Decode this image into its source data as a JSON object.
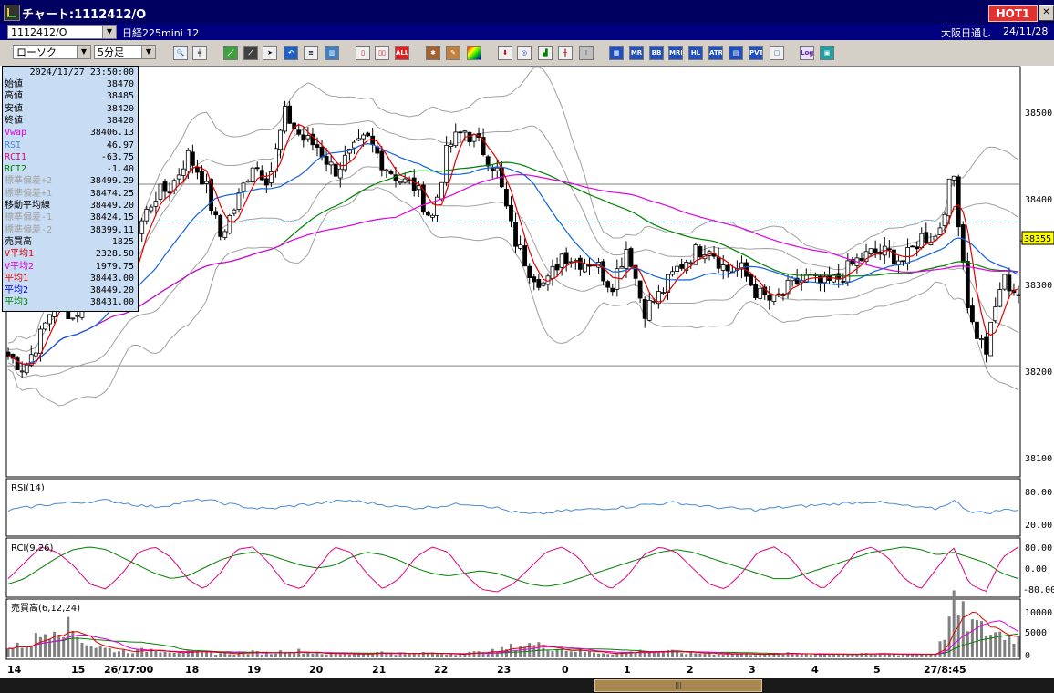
{
  "window": {
    "title": "チャート:1112412/O",
    "hot_label": "HOT1"
  },
  "infobar": {
    "symbol_code": "1112412/O",
    "symbol_name": "日経225mini 12",
    "market": "大阪日通し",
    "date": "24/11/28"
  },
  "toolbar": {
    "chart_type": "ローソク",
    "interval": "5分足",
    "labels": {
      "all": "ALL",
      "mr": "MR",
      "bb": "BB",
      "mre": "MRE",
      "hl": "HL",
      "atr": "ATR",
      "pvt": "PVT",
      "log": "Log"
    }
  },
  "info_panel": {
    "datetime": "2024/11/27  23:50:00",
    "rows": [
      {
        "label": "始値",
        "value": "38470",
        "color": "#000000"
      },
      {
        "label": "高値",
        "value": "38485",
        "color": "#000000"
      },
      {
        "label": "安値",
        "value": "38420",
        "color": "#000000"
      },
      {
        "label": "終値",
        "value": "38420",
        "color": "#000000"
      },
      {
        "label": "Vwap",
        "value": "38406.13",
        "color": "#e000e0"
      },
      {
        "label": "RSI",
        "value": "46.97",
        "color": "#4a8ad0"
      },
      {
        "label": "RCI1",
        "value": "-63.75",
        "color": "#e00080"
      },
      {
        "label": "RCI2",
        "value": "-1.40",
        "color": "#008000"
      },
      {
        "label": "標準偏差+2",
        "value": "38499.29",
        "color": "#a0a0a0"
      },
      {
        "label": "標準偏差+1",
        "value": "38474.25",
        "color": "#a0a0a0"
      },
      {
        "label": "移動平均線",
        "value": "38449.20",
        "color": "#000000"
      },
      {
        "label": "標準偏差-1",
        "value": "38424.15",
        "color": "#a0a0a0"
      },
      {
        "label": "標準偏差-2",
        "value": "38399.11",
        "color": "#a0a0a0"
      },
      {
        "label": "売買高",
        "value": "1825",
        "color": "#000000"
      },
      {
        "label": "V平均1",
        "value": "2328.50",
        "color": "#e00000"
      },
      {
        "label": "V平均2",
        "value": "1979.75",
        "color": "#e000e0"
      },
      {
        "label": "平均1",
        "value": "38443.00",
        "color": "#e00000"
      },
      {
        "label": "平均2",
        "value": "38449.20",
        "color": "#0000e0"
      },
      {
        "label": "平均3",
        "value": "38431.00",
        "color": "#008000"
      }
    ]
  },
  "price_axis": {
    "ticks": [
      "38500",
      "38400",
      "38300",
      "38200",
      "38100"
    ],
    "current": "38355"
  },
  "rsi_panel": {
    "label": "RSI(14)",
    "ticks": [
      "80.00",
      "20.00"
    ]
  },
  "rci_panel": {
    "label": "RCI(9,26)",
    "ticks": [
      "80.00",
      "0.00",
      "-80.00"
    ]
  },
  "volume_panel": {
    "label": "売買高(6,12,24)",
    "ticks": [
      "10000",
      "5000",
      "0"
    ]
  },
  "x_axis": {
    "labels": [
      "14",
      "15",
      "26/17:00",
      "18",
      "19",
      "20",
      "21",
      "22",
      "23",
      "0",
      "1",
      "2",
      "3",
      "4",
      "5",
      "27/8:45"
    ]
  },
  "colors": {
    "up": "#ffffff",
    "down": "#000000",
    "ma1": "#e00000",
    "ma2": "#1060e0",
    "ma3": "#008000",
    "vwap": "#e000e0",
    "bands": "#a0a0a0",
    "rsi": "#4a8ad0",
    "rci1": "#e00080",
    "rci2": "#008000"
  },
  "chart_data": [
    {
      "type": "candlestick",
      "y_axis_ticks": [
        38500,
        38400,
        38300,
        38200,
        38100
      ],
      "ylim": [
        38070,
        38565
      ],
      "reference_lines": [
        {
          "value": 38424,
          "style": "solid"
        },
        {
          "value": 38203,
          "style": "solid"
        },
        {
          "value": 38378,
          "style": "dashed"
        }
      ],
      "current_price": 38355,
      "close_anchors": [
        38215,
        38200,
        38240,
        38290,
        38260,
        38300,
        38330,
        38290,
        38370,
        38410,
        38420,
        38460,
        38430,
        38360,
        38400,
        38450,
        38430,
        38510,
        38480,
        38470,
        38440,
        38460,
        38480,
        38450,
        38430,
        38420,
        38380,
        38470,
        38490,
        38470,
        38440,
        38360,
        38320,
        38300,
        38340,
        38330,
        38330,
        38300,
        38350,
        38270,
        38290,
        38320,
        38340,
        38350,
        38320,
        38320,
        38290,
        38280,
        38300,
        38310,
        38300,
        38310,
        38330,
        38340,
        38340,
        38330,
        38360,
        38360,
        38440,
        38260,
        38220,
        38310,
        38290
      ]
    },
    {
      "type": "line",
      "title": "RSI(14)",
      "y_axis_ticks": [
        80,
        20
      ],
      "anchors": [
        45,
        50,
        55,
        58,
        60,
        62,
        64,
        60,
        55,
        52,
        56,
        62,
        66,
        60,
        55,
        50,
        48,
        52,
        56,
        58,
        62,
        64,
        60,
        56,
        52,
        50,
        52,
        55,
        58,
        56,
        50,
        42,
        38,
        40,
        44,
        46,
        48,
        50,
        52,
        56,
        58,
        60,
        56,
        52,
        50,
        48,
        46,
        50,
        52,
        54,
        56,
        58,
        60,
        62,
        58,
        54,
        50,
        48,
        64,
        44,
        40,
        46,
        47
      ]
    },
    {
      "type": "line",
      "title": "RCI(9,26)",
      "y_axis_ticks": [
        80,
        0,
        -80
      ],
      "series": [
        {
          "name": "RCI(9)",
          "anchors": [
            -40,
            20,
            80,
            60,
            10,
            -60,
            -80,
            -20,
            60,
            80,
            40,
            -40,
            -80,
            -20,
            70,
            80,
            20,
            -60,
            -80,
            0,
            80,
            60,
            -20,
            -80,
            -40,
            40,
            80,
            60,
            -20,
            -80,
            -90,
            -60,
            0,
            60,
            80,
            40,
            -40,
            -80,
            -30,
            50,
            80,
            60,
            0,
            -60,
            -80,
            -20,
            60,
            80,
            40,
            -40,
            -80,
            -20,
            60,
            80,
            40,
            -40,
            -80,
            0,
            80,
            -60,
            -90,
            40,
            80
          ]
        },
        {
          "name": "RCI(26)",
          "anchors": [
            -60,
            -40,
            0,
            40,
            70,
            80,
            70,
            40,
            10,
            -20,
            -40,
            -30,
            0,
            30,
            50,
            60,
            50,
            30,
            10,
            0,
            10,
            40,
            60,
            50,
            30,
            0,
            -20,
            -30,
            -20,
            -10,
            -20,
            -40,
            -60,
            -70,
            -60,
            -40,
            -20,
            0,
            20,
            40,
            60,
            70,
            60,
            40,
            20,
            0,
            -20,
            -40,
            -40,
            -20,
            0,
            20,
            40,
            60,
            70,
            80,
            70,
            50,
            60,
            40,
            20,
            -20,
            -40
          ]
        }
      ]
    },
    {
      "type": "bar",
      "title": "売買高(6,12,24)",
      "y_axis_ticks": [
        10000,
        5000,
        0
      ],
      "anchors": [
        2000,
        3000,
        5000,
        8500,
        6000,
        3000,
        2000,
        1500,
        1500,
        2000,
        1500,
        1200,
        1000,
        1000,
        1000,
        1200,
        1000,
        1500,
        1500,
        1000,
        800,
        800,
        1000,
        1200,
        900,
        800,
        1000,
        900,
        1000,
        1200,
        1500,
        2500,
        3000,
        2500,
        2000,
        1500,
        1200,
        1000,
        1200,
        1500,
        1500,
        1200,
        1000,
        1000,
        900,
        800,
        800,
        800,
        900,
        800,
        900,
        800,
        700,
        800,
        800,
        700,
        800,
        900,
        11500,
        8000,
        6000,
        5500,
        4500
      ]
    }
  ]
}
